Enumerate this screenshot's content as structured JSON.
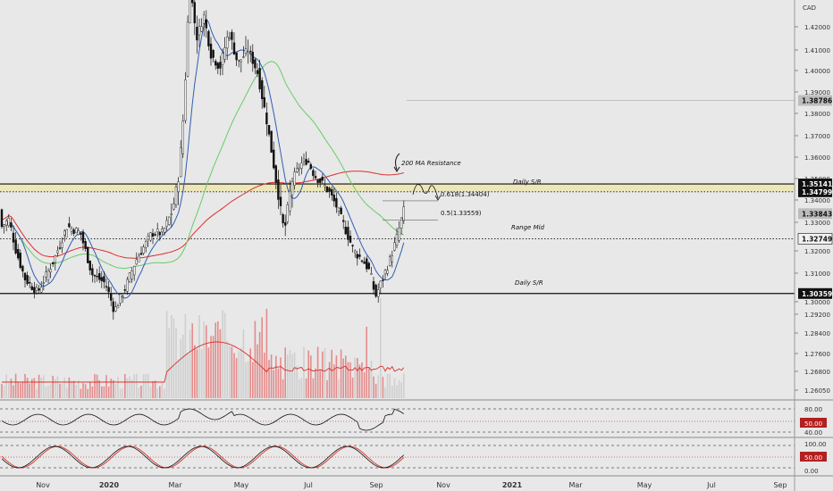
{
  "currency": "CAD",
  "colors": {
    "bg": "#e8e8e8",
    "up": "#f5f5f5",
    "down": "#111111",
    "ma_fast": "#2f5db5",
    "ma_mid": "#66cc66",
    "ma_slow": "#d9302c",
    "level": "#111111",
    "band": "#ece6b8",
    "vol_up": "#cfcfcf",
    "vol_down": "#e58b8b"
  },
  "y_axis": {
    "ticks": [
      "1.42000",
      "1.41000",
      "1.40000",
      "1.39000",
      "1.38000",
      "1.37000",
      "1.36000",
      "1.35000",
      "1.34000",
      "1.33000",
      "1.32000",
      "1.31000",
      "1.30000",
      "1.29200",
      "1.28400",
      "1.27600",
      "1.26800",
      "1.26050"
    ]
  },
  "x_axis": {
    "ticks": [
      "Nov",
      "2020",
      "Mar",
      "May",
      "Jul",
      "Sep",
      "Nov",
      "2021",
      "Mar",
      "May",
      "Jul",
      "Sep"
    ]
  },
  "price_tags": [
    {
      "label": "1.38786",
      "style": "grey"
    },
    {
      "label": "1.35141",
      "style": "dark"
    },
    {
      "label": "1.34799",
      "style": "dark"
    },
    {
      "label": "1.33843",
      "style": "grey"
    },
    {
      "label": "1.32749",
      "style": "light"
    },
    {
      "label": "1.30359",
      "style": "dark"
    }
  ],
  "annotations": {
    "ma_resistance": "200 MA Resistance",
    "daily_sr_top": "Daily S/R",
    "fib_618": "0.618(1.34404)",
    "fib_5": "0.5(1.33559)",
    "range_mid": "Range Mid",
    "daily_sr_bottom": "Daily S/R"
  },
  "rsi": {
    "ticks": [
      "80.00",
      "50.00",
      "40.00"
    ]
  },
  "stoch": {
    "ticks": [
      "100.00",
      "50.00",
      "0.00"
    ]
  },
  "chart_data": {
    "type": "candlestick",
    "symbol_currency": "CAD",
    "description": "Daily price with moving averages, volume, RSI and stochastic",
    "price_range": [
      1.296,
      1.432
    ],
    "levels": [
      {
        "price": 1.38786,
        "style": "thin"
      },
      {
        "price": 1.35141,
        "style": "solid",
        "label": "Daily S/R"
      },
      {
        "price": 1.34799,
        "style": "dotted"
      },
      {
        "price": 1.33843,
        "style": "none"
      },
      {
        "price": 1.32749,
        "style": "dotted",
        "label": "Range Mid"
      },
      {
        "price": 1.30359,
        "style": "solid",
        "label": "Daily S/R"
      }
    ],
    "fib_levels": [
      {
        "ratio": 0.618,
        "price": 1.34404
      },
      {
        "ratio": 0.5,
        "price": 1.33559
      }
    ],
    "indicators": [
      "MA fast (blue)",
      "MA mid (green)",
      "MA 200 (red)",
      "Volume with MA",
      "RSI",
      "Stochastic"
    ],
    "key_points": [
      {
        "time": "Oct 2019",
        "price": 1.332
      },
      {
        "time": "Nov 2019",
        "price": 1.316
      },
      {
        "time": "Dec 2019",
        "price": 1.33
      },
      {
        "time": "Jan 2020",
        "price": 1.3
      },
      {
        "time": "Feb 2020",
        "price": 1.33
      },
      {
        "time": "Mar 2020",
        "price": 1.44
      },
      {
        "time": "Apr 2020",
        "price": 1.405
      },
      {
        "time": "May 2020",
        "price": 1.415
      },
      {
        "time": "Jun 2020",
        "price": 1.35
      },
      {
        "time": "Jul 2020",
        "price": 1.362
      },
      {
        "time": "Aug 2020",
        "price": 1.325
      },
      {
        "time": "Sep 2020",
        "price": 1.305
      },
      {
        "time": "Sep 2020",
        "price": 1.34
      }
    ]
  }
}
